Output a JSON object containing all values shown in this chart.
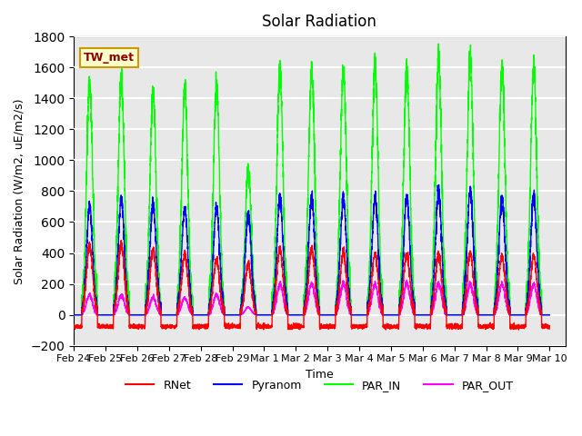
{
  "title": "Solar Radiation",
  "ylabel": "Solar Radiation (W/m2, uE/m2/s)",
  "xlabel": "Time",
  "ylim": [
    -200,
    1800
  ],
  "xlim_days": 15.5,
  "background_color": "#e8e8e8",
  "grid_color": "white",
  "colors": {
    "RNet": "red",
    "Pyranom": "blue",
    "PAR_IN": "lime",
    "PAR_OUT": "magenta"
  },
  "legend_label": "TW_met",
  "legend_box_color": "#ffffcc",
  "legend_box_edge": "#cc9900",
  "x_tick_labels": [
    "Feb 24",
    "Feb 25",
    "Feb 26",
    "Feb 27",
    "Feb 28",
    "Feb 29",
    "Mar 1",
    "Mar 2",
    "Mar 3",
    "Mar 4",
    "Mar 5",
    "Mar 6",
    "Mar 7",
    "Mar 8",
    "Mar 9",
    "Mar 10"
  ],
  "x_tick_positions": [
    0,
    1,
    2,
    3,
    4,
    5,
    6,
    7,
    8,
    9,
    10,
    11,
    12,
    13,
    14,
    15
  ],
  "num_days": 15,
  "day_peaks_PAR_IN": [
    1490,
    1530,
    1450,
    1450,
    1480,
    950,
    1590,
    1580,
    1590,
    1600,
    1600,
    1650,
    1650,
    1610,
    1600
  ],
  "day_peaks_Pyranom": [
    700,
    750,
    720,
    690,
    700,
    650,
    760,
    760,
    750,
    760,
    760,
    800,
    800,
    760,
    760
  ],
  "day_peaks_RNet": [
    450,
    460,
    420,
    390,
    360,
    330,
    430,
    430,
    400,
    400,
    390,
    390,
    400,
    380,
    380
  ],
  "day_peaks_PAR_OUT": [
    130,
    130,
    110,
    110,
    130,
    50,
    200,
    200,
    200,
    200,
    200,
    200,
    200,
    200,
    200
  ],
  "night_RNet": -75,
  "linewidth": 1.0
}
